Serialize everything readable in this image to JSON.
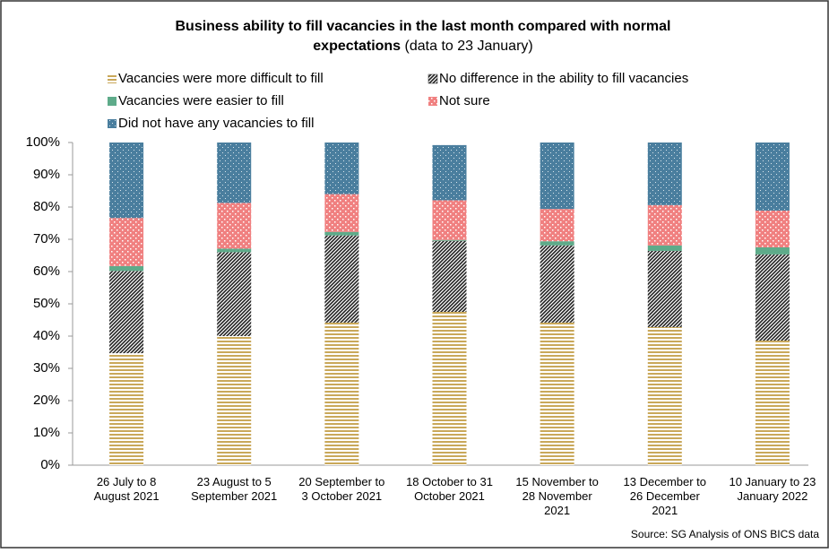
{
  "chart_data": {
    "type": "stacked_bar",
    "title": [
      "Business ability to fill vacancies in the last month compared with normal",
      "expectations"
    ],
    "subtitle": "(data to 23 January)",
    "source": "Source: SG Analysis of ONS BICS data",
    "categories": [
      "26 July to 8\nAugust 2021",
      "23 August to 5\nSeptember 2021",
      "20 September to\n3 October 2021",
      "18 October to 31\nOctober 2021",
      "15 November to\n28 November\n2021",
      "13 December to\n26 December\n2021",
      "10 January to 23\nJanuary 2022"
    ],
    "series": [
      {
        "name": "Vacancies were more difficult to fill",
        "color": "#c9a85a",
        "pattern": "horizontal",
        "values": [
          34.7,
          40.0,
          44.2,
          47.5,
          44.2,
          42.8,
          38.6
        ]
      },
      {
        "name": "No difference in the ability to fill vacancies",
        "color": "#222222",
        "pattern": "hatch",
        "values": [
          25.5,
          26.0,
          27.0,
          22.0,
          23.9,
          23.6,
          26.7
        ]
      },
      {
        "name": "Vacancies were easier to fill",
        "color": "#5eab8a",
        "pattern": "solid",
        "values": [
          1.5,
          1.1,
          1.1,
          0.3,
          1.3,
          1.7,
          2.2
        ]
      },
      {
        "name": "Not sure",
        "color": "#f08080",
        "pattern": "dots",
        "values": [
          14.9,
          14.2,
          11.7,
          12.3,
          10.0,
          12.5,
          11.4
        ]
      },
      {
        "name": "Did not have any vacancies to fill",
        "color": "#4a7e9e",
        "pattern": "whitedots",
        "values": [
          23.4,
          18.7,
          16.0,
          17.1,
          20.6,
          19.4,
          21.1
        ]
      }
    ],
    "ylim": [
      0,
      100
    ],
    "yticks": [
      {
        "value": 0,
        "label": "0%"
      },
      {
        "value": 10,
        "label": "10%"
      },
      {
        "value": 20,
        "label": "20%"
      },
      {
        "value": 30,
        "label": "30%"
      },
      {
        "value": 40,
        "label": "40%"
      },
      {
        "value": 50,
        "label": "50%"
      },
      {
        "value": 60,
        "label": "60%"
      },
      {
        "value": 70,
        "label": "70%"
      },
      {
        "value": 80,
        "label": "80%"
      },
      {
        "value": 90,
        "label": "90%"
      },
      {
        "value": 100,
        "label": "100%"
      }
    ],
    "grid": false
  }
}
